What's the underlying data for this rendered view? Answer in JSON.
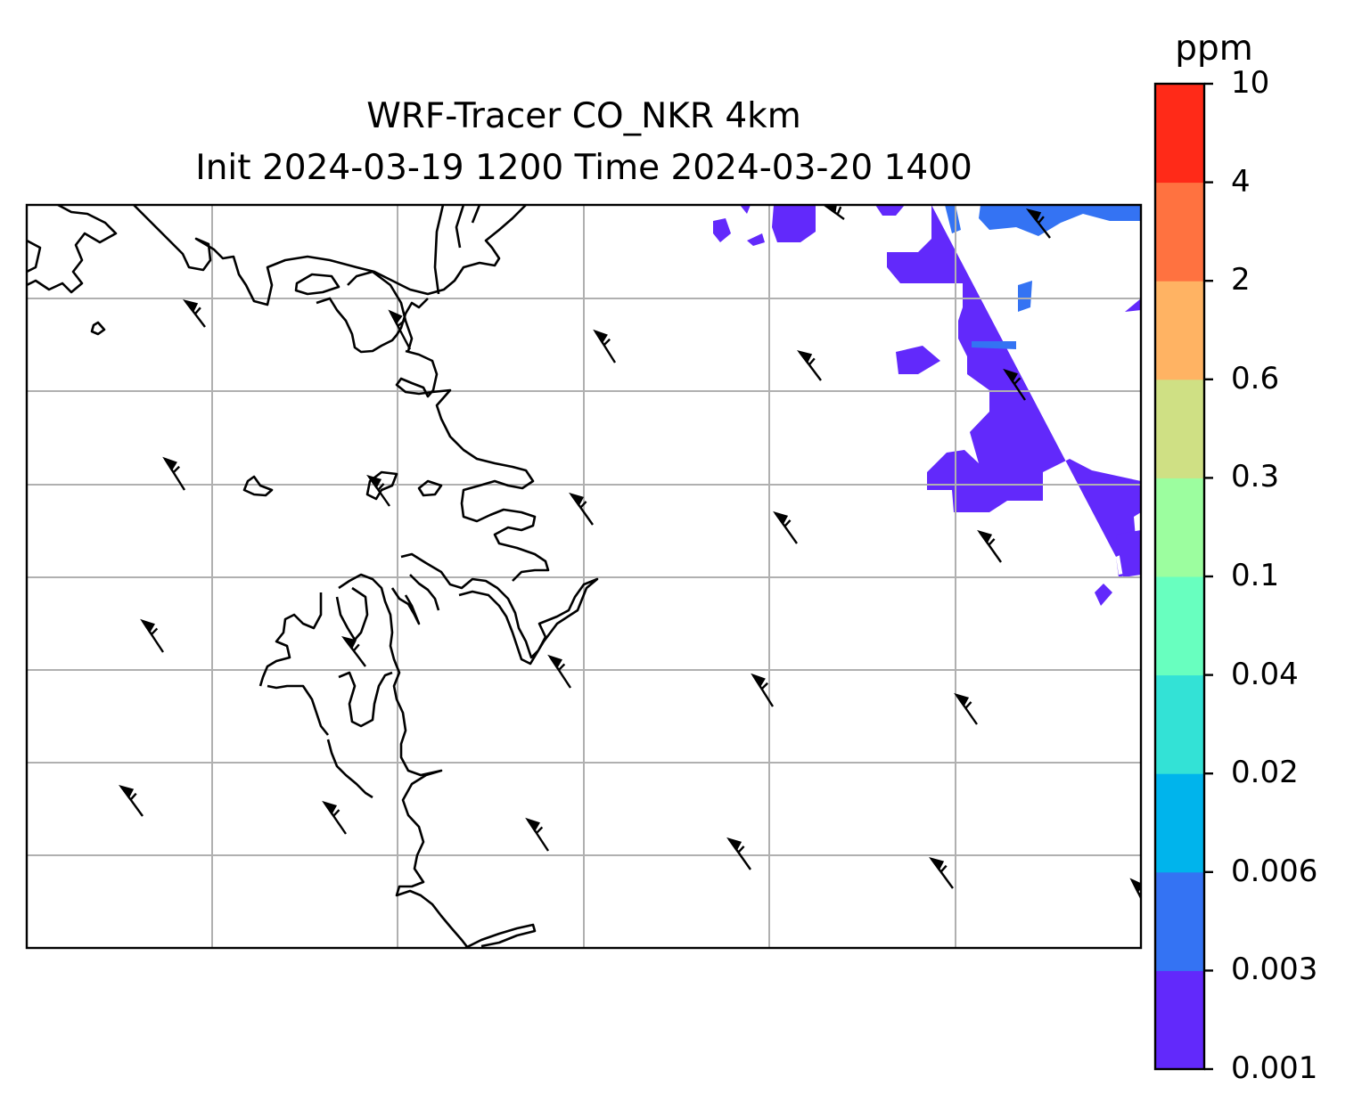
{
  "title_line1": "WRF-Tracer CO_NKR 4km",
  "title_line2": "Init 2024-03-19 1200 Time 2024-03-20 1400",
  "colorbar": {
    "unit": "ppm",
    "levels": [
      "0.001",
      "0.003",
      "0.006",
      "0.02",
      "0.04",
      "0.1",
      "0.3",
      "0.6",
      "2",
      "4",
      "10"
    ],
    "colors": [
      "#6229fb",
      "#3473f3",
      "#00b4ec",
      "#33e2d6",
      "#68ffbf",
      "#9cfe9f",
      "#cfe084",
      "#ffb363",
      "#ff7240",
      "#ff2a18"
    ]
  },
  "map": {
    "gridlines": true,
    "coastline_color": "#000000",
    "gridline_color": "#b0b0b0"
  }
}
